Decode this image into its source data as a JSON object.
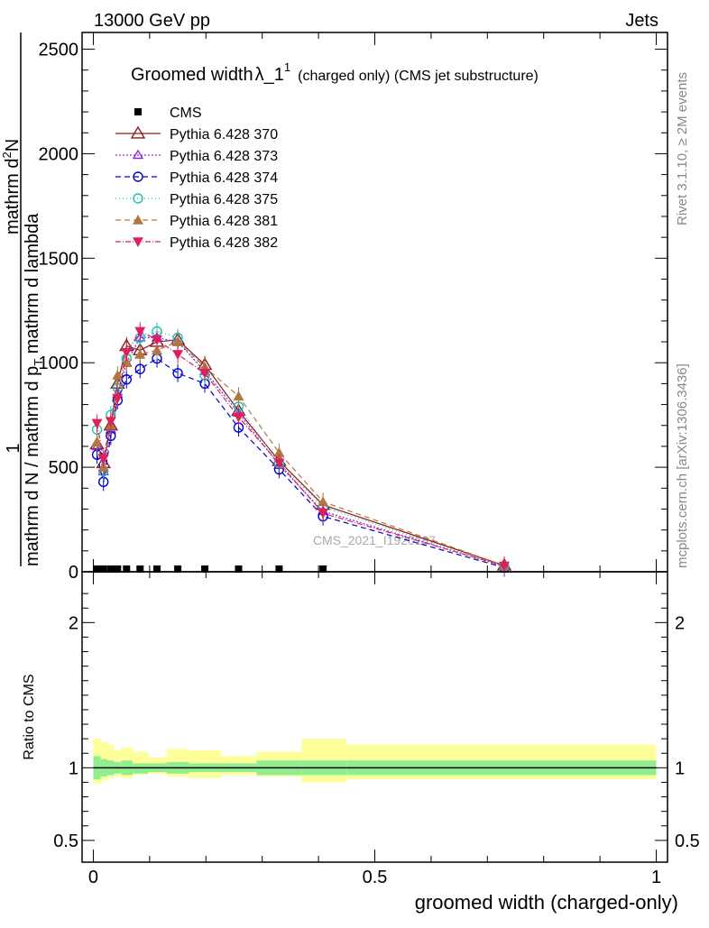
{
  "header": {
    "left": "13000 GeV pp",
    "right": "Jets"
  },
  "side_labels": {
    "rivet": "Rivet 3.1.10, ≥ 2M events",
    "mcplots": "mcplots.cern.ch [arXiv:1306.3436]"
  },
  "watermark": "CMS_2021_I1920187",
  "plot_title": {
    "main": "Groomed width",
    "lambda": "λ_1",
    "sup": "1",
    "suffix": "(charged only) (CMS jet substructure)"
  },
  "y_label": {
    "one": "1",
    "denom": "mathrm d N / mathrm d p",
    "denom_sub": "T",
    "num": "mathrm d",
    "num_sup": "2",
    "num2": "N",
    "num_den": "mathrm d p",
    "num_den_sub": "T",
    "num_den2": " mathrm d lambda"
  },
  "ratio_ylabel": "Ratio to CMS",
  "x_label": "groomed width (charged-only)",
  "colors": {
    "cms": "#000000",
    "p370": "#8b1a1a",
    "p373": "#8a2be2",
    "p374": "#0000d0",
    "p375": "#20c0b0",
    "p381": "#b07840",
    "p382": "#e0205a",
    "band_outer": "#ffff99",
    "band_inner": "#90ee90"
  },
  "chart_data": {
    "type": "line",
    "xlim": [
      -0.02,
      1.02
    ],
    "ylim": [
      0,
      2580
    ],
    "ratio_ylim": [
      0.35,
      2.35
    ],
    "y_ticks": [
      0,
      500,
      1000,
      1500,
      2000,
      2500
    ],
    "ratio_ticks": [
      0.5,
      1,
      2
    ],
    "ratio_tick_labels": [
      "0.5",
      "1",
      "2"
    ],
    "x_ticks": [
      0,
      0.5,
      1
    ],
    "x_tick_labels": [
      "0",
      "0.5",
      "1"
    ],
    "x": [
      0.0065,
      0.018,
      0.031,
      0.043,
      0.059,
      0.083,
      0.113,
      0.15,
      0.198,
      0.258,
      0.33,
      0.408,
      0.73
    ],
    "series": [
      {
        "name": "CMS",
        "marker": "square",
        "dash": "",
        "values": [
          0,
          0,
          0,
          0,
          0,
          0,
          0,
          0,
          0,
          0,
          0,
          0,
          0
        ]
      },
      {
        "name": "Pythia 6.428 370",
        "marker": "tri-up-open",
        "dash": "",
        "values": [
          610,
          520,
          700,
          900,
          1080,
          1060,
          1100,
          1110,
          990,
          770,
          530,
          320,
          30
        ]
      },
      {
        "name": "Pythia 6.428 373",
        "marker": "tri-up-open-small",
        "dash": "2,2",
        "values": [
          600,
          480,
          680,
          850,
          1000,
          1120,
          1120,
          1100,
          960,
          760,
          510,
          290,
          25
        ]
      },
      {
        "name": "Pythia 6.428 374",
        "marker": "circle-open",
        "dash": "6,4",
        "values": [
          560,
          430,
          650,
          820,
          920,
          970,
          1020,
          950,
          900,
          690,
          490,
          265,
          20
        ]
      },
      {
        "name": "Pythia 6.428 375",
        "marker": "circle-open",
        "dash": "1,3",
        "values": [
          680,
          480,
          750,
          880,
          1020,
          1120,
          1150,
          1120,
          940,
          790,
          520,
          310,
          25
        ]
      },
      {
        "name": "Pythia 6.428 381",
        "marker": "tri-up-filled",
        "dash": "6,4",
        "values": [
          620,
          500,
          700,
          940,
          1000,
          1040,
          1060,
          1100,
          980,
          840,
          570,
          335,
          30
        ]
      },
      {
        "name": "Pythia 6.428 382",
        "marker": "tri-down-filled",
        "dash": "6,2,1,2",
        "values": [
          710,
          540,
          720,
          830,
          1050,
          1150,
          1110,
          1040,
          950,
          740,
          520,
          280,
          28
        ]
      }
    ],
    "band_edges": [
      0.0,
      0.013,
      0.025,
      0.037,
      0.05,
      0.07,
      0.097,
      0.13,
      0.17,
      0.227,
      0.29,
      0.37,
      0.45,
      1.0
    ],
    "band_inner": [
      [
        0.92,
        1.08
      ],
      [
        0.94,
        1.06
      ],
      [
        0.95,
        1.05
      ],
      [
        0.96,
        1.04
      ],
      [
        0.95,
        1.05
      ],
      [
        0.96,
        1.03
      ],
      [
        0.97,
        1.03
      ],
      [
        0.96,
        1.04
      ],
      [
        0.97,
        1.03
      ],
      [
        0.97,
        1.03
      ],
      [
        0.95,
        1.05
      ],
      [
        0.95,
        1.05
      ],
      [
        0.95,
        1.05
      ]
    ],
    "band_outer": [
      [
        0.89,
        1.2
      ],
      [
        0.91,
        1.18
      ],
      [
        0.93,
        1.16
      ],
      [
        0.94,
        1.12
      ],
      [
        0.93,
        1.14
      ],
      [
        0.95,
        1.11
      ],
      [
        0.96,
        1.07
      ],
      [
        0.94,
        1.13
      ],
      [
        0.93,
        1.12
      ],
      [
        0.95,
        1.08
      ],
      [
        0.94,
        1.11
      ],
      [
        0.9,
        1.2
      ],
      [
        0.92,
        1.16
      ]
    ]
  }
}
